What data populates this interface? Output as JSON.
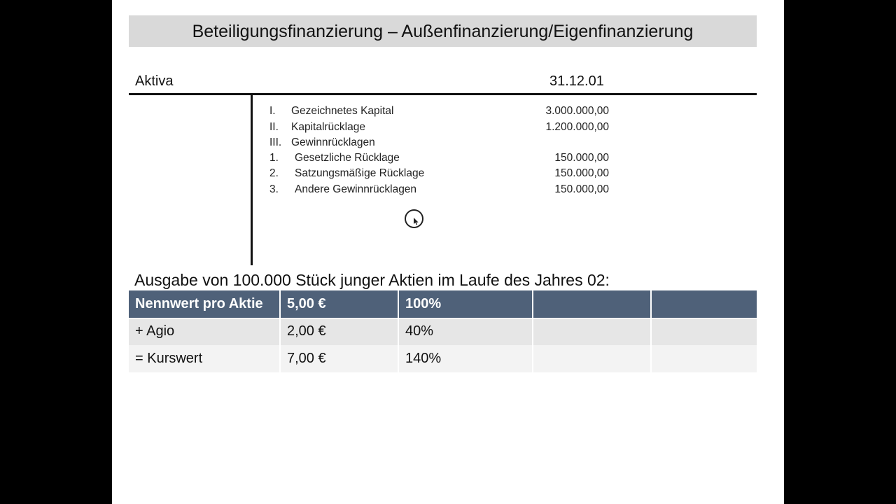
{
  "title": "Beteiligungsfinanzierung – Außenfinanzierung/Eigenfinanzierung",
  "header": {
    "left": "Aktiva",
    "date": "31.12.01"
  },
  "balance_rows": [
    {
      "num": "I.",
      "label": "Gezeichnetes Kapital",
      "value": "3.000.000,00"
    },
    {
      "num": "II.",
      "label": "Kapitalrücklage",
      "value": "1.200.000,00"
    },
    {
      "num": "III.",
      "label": "Gewinnrücklagen",
      "value": ""
    },
    {
      "num": "1.",
      "label": "Gesetzliche Rücklage",
      "value": "150.000,00"
    },
    {
      "num": "2.",
      "label": "Satzungsmäßige Rücklage",
      "value": "150.000,00"
    },
    {
      "num": "3.",
      "label": "Andere Gewinnrücklagen",
      "value": "150.000,00"
    }
  ],
  "issue_text": "Ausgabe von 100.000 Stück junger Aktien im Laufe des Jahres 02:",
  "table": {
    "rows": [
      [
        "Nennwert pro Aktie",
        "5,00 €",
        "100%",
        "",
        ""
      ],
      [
        "+ Agio",
        "2,00 €",
        "40%",
        "",
        ""
      ],
      [
        "= Kurswert",
        "7,00 €",
        "140%",
        "",
        ""
      ]
    ]
  }
}
